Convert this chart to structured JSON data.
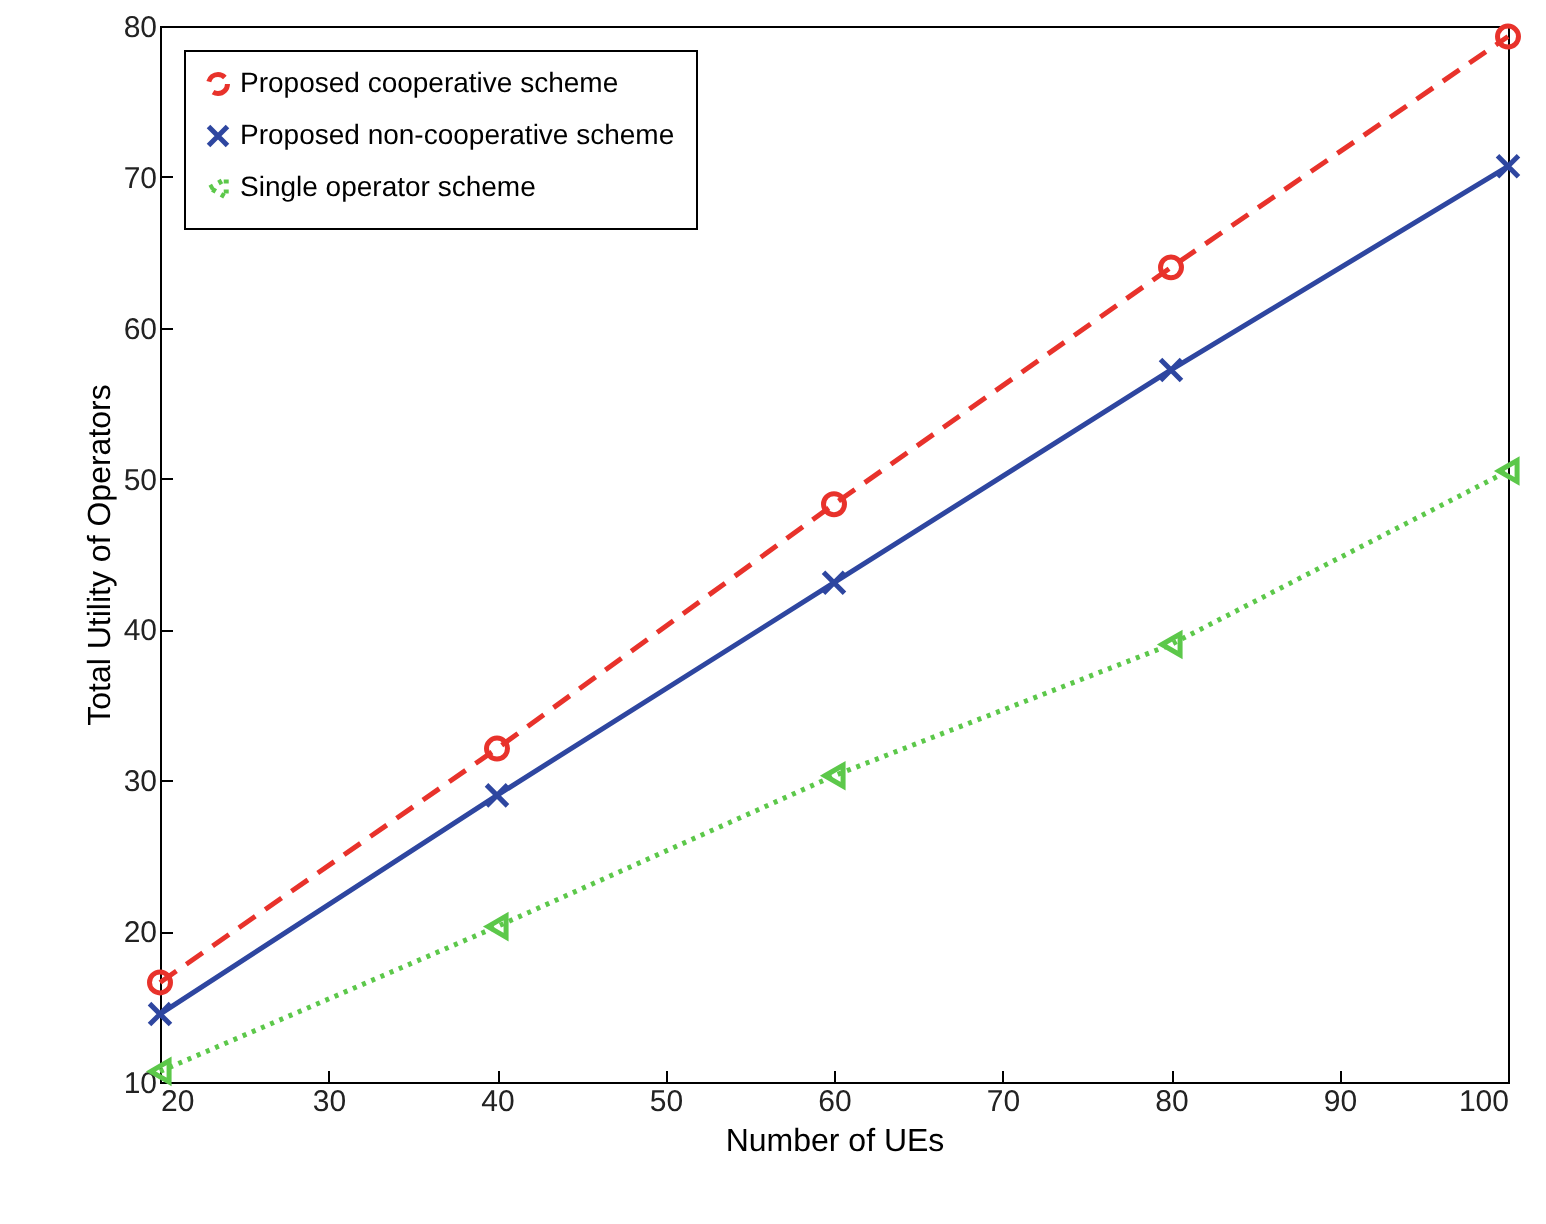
{
  "chart_data": {
    "type": "line",
    "xlabel": "Number of UEs",
    "ylabel": "Total Utility of Operators",
    "x": [
      20,
      40,
      60,
      80,
      100
    ],
    "series": [
      {
        "name": "Proposed cooperative scheme",
        "color": "#e8322b",
        "marker": "circle",
        "line_style": "dashed",
        "values": [
          16.6,
          32.1,
          48.3,
          64.0,
          79.3
        ]
      },
      {
        "name": "Proposed non-cooperative scheme",
        "color": "#2e46a0",
        "marker": "cross",
        "line_style": "solid",
        "values": [
          14.5,
          29.0,
          43.1,
          57.2,
          70.7
        ]
      },
      {
        "name": "Single operator scheme",
        "color": "#5cc84a",
        "marker": "triangle",
        "line_style": "dotted",
        "values": [
          10.7,
          20.3,
          30.3,
          39.0,
          50.5
        ]
      }
    ],
    "xlim": [
      20,
      100
    ],
    "xticks": [
      20,
      30,
      40,
      50,
      60,
      70,
      80,
      90,
      100
    ],
    "ylim": [
      10,
      80
    ],
    "yticks": [
      10,
      20,
      30,
      40,
      50,
      60,
      70,
      80
    ],
    "grid": false,
    "legend": "top left"
  }
}
